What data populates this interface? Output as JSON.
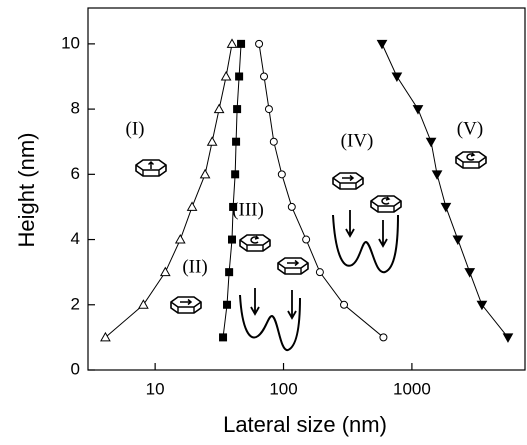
{
  "chart_data": {
    "type": "line",
    "xlabel": "Lateral size (nm)",
    "ylabel": "Height (nm)",
    "xscale": "log",
    "xlim": [
      3,
      7600
    ],
    "ylim": [
      0,
      11.1
    ],
    "xticks": [
      10,
      100,
      1000
    ],
    "yticks": [
      0,
      2,
      4,
      6,
      8,
      10
    ],
    "series": [
      {
        "marker": "triangle-up-open",
        "color": "#000000",
        "x": [
          4.1,
          8.1,
          12,
          15.7,
          19.4,
          24.5,
          27.8,
          31.5,
          35.7,
          39.7
        ],
        "values": [
          1,
          2,
          3,
          4,
          5,
          6,
          7,
          8,
          9,
          10
        ]
      },
      {
        "marker": "square-filled",
        "color": "#000000",
        "x": [
          33.8,
          36.3,
          37.7,
          39.7,
          40.5,
          42,
          42.7,
          43.5,
          45.1,
          46.7
        ],
        "values": [
          1,
          2,
          3,
          4,
          5,
          6,
          7,
          8,
          9,
          10
        ]
      },
      {
        "marker": "circle-open",
        "color": "#000000",
        "x": [
          600,
          296,
          192,
          150,
          116,
          97,
          84,
          77,
          70.5,
          64.5
        ],
        "values": [
          1,
          2,
          3,
          4,
          5,
          6,
          7,
          8,
          9,
          10
        ]
      },
      {
        "marker": "triangle-down-filled",
        "color": "#000000",
        "x": [
          5600,
          3510,
          2820,
          2280,
          1840,
          1570,
          1410,
          1115,
          764,
          585
        ],
        "values": [
          1,
          2,
          3,
          4,
          5,
          6,
          7,
          8,
          9,
          10
        ]
      }
    ],
    "annotations": [
      "(I)",
      "(II)",
      "(III)",
      "(IV)",
      "(V)"
    ]
  }
}
